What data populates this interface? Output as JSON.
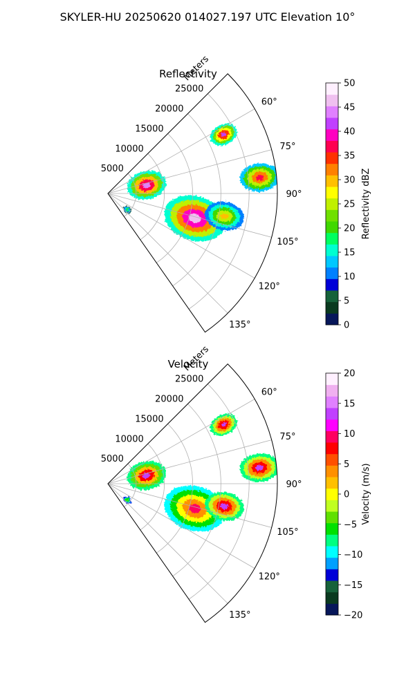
{
  "figure": {
    "suptitle": "SKYLER-HU  20250620  014027.197 UTC Elevation 10°"
  },
  "chart_data": [
    {
      "type": "heatmap",
      "title": "Reflectivity",
      "radial_label": "Meters",
      "radial_ticks": [
        5000,
        10000,
        15000,
        20000,
        25000
      ],
      "radial_tick_labels": [
        "5000",
        "10000",
        "15000",
        "20000",
        "25000"
      ],
      "rmax": 30000,
      "theta_range_deg": [
        45,
        145
      ],
      "theta_ticks_labeled": [
        60,
        75,
        90,
        105,
        120,
        135
      ],
      "theta_tick_labels": [
        "60°",
        "75°",
        "90°",
        "105°",
        "120°",
        "135°"
      ],
      "grid": true,
      "colorbar": {
        "label": "Reflectivity dBZ",
        "range": [
          0,
          50
        ],
        "ticks": [
          0,
          5,
          10,
          15,
          20,
          25,
          30,
          35,
          40,
          45,
          50
        ],
        "tick_labels": [
          "0",
          "5",
          "10",
          "15",
          "20",
          "25",
          "30",
          "35",
          "40",
          "45",
          "50"
        ]
      },
      "echo_cells": [
        {
          "azimuth_deg": 63,
          "range_m": 23000,
          "extent_m": 2500,
          "peak": 42
        },
        {
          "azimuth_deg": 78,
          "range_m": 7000,
          "extent_m": 3500,
          "peak": 45
        },
        {
          "azimuth_deg": 84,
          "range_m": 27000,
          "extent_m": 3500,
          "peak": 38
        },
        {
          "azimuth_deg": 106,
          "range_m": 16000,
          "extent_m": 5500,
          "peak": 47
        },
        {
          "azimuth_deg": 101,
          "range_m": 21000,
          "extent_m": 3500,
          "peak": 30
        },
        {
          "azimuth_deg": 130,
          "range_m": 4500,
          "extent_m": 800,
          "peak": 20
        }
      ]
    },
    {
      "type": "heatmap",
      "title": "Velocity",
      "radial_label": "Meters",
      "radial_ticks": [
        5000,
        10000,
        15000,
        20000,
        25000
      ],
      "radial_tick_labels": [
        "5000",
        "10000",
        "15000",
        "20000",
        "25000"
      ],
      "rmax": 30000,
      "theta_range_deg": [
        45,
        145
      ],
      "theta_ticks_labeled": [
        60,
        75,
        90,
        105,
        120,
        135
      ],
      "theta_tick_labels": [
        "60°",
        "75°",
        "90°",
        "105°",
        "120°",
        "135°"
      ],
      "grid": true,
      "colorbar": {
        "label": "Velocity (m/s)",
        "range": [
          -20,
          20
        ],
        "ticks": [
          -20,
          -15,
          -10,
          -5,
          0,
          5,
          10,
          15,
          20
        ],
        "tick_labels": [
          "−20",
          "−15",
          "−10",
          "−5",
          "0",
          "5",
          "10",
          "15",
          "20"
        ]
      },
      "echo_cells": [
        {
          "azimuth_deg": 63,
          "range_m": 23000,
          "extent_m": 2500,
          "peak": 14
        },
        {
          "azimuth_deg": 78,
          "range_m": 7000,
          "extent_m": 3500,
          "peak": 13
        },
        {
          "azimuth_deg": 84,
          "range_m": 27000,
          "extent_m": 3500,
          "peak": 14
        },
        {
          "azimuth_deg": 106,
          "range_m": 16000,
          "extent_m": 5500,
          "peak": 9
        },
        {
          "azimuth_deg": 101,
          "range_m": 21000,
          "extent_m": 3500,
          "peak": 14
        },
        {
          "azimuth_deg": 130,
          "range_m": 4500,
          "extent_m": 800,
          "peak": -3
        }
      ]
    }
  ],
  "colors": {
    "axis": "#000000",
    "grid": "#b0b0b0",
    "reflectivity_cmap": [
      "#07175a",
      "#0a3a1f",
      "#16623a",
      "#0000d8",
      "#0080ff",
      "#00c8ff",
      "#00ffd0",
      "#00ff60",
      "#40d800",
      "#70e000",
      "#c0f000",
      "#ffff00",
      "#ffc000",
      "#ff8000",
      "#ff3000",
      "#ff0050",
      "#ff00c0",
      "#c040ff",
      "#e080ff",
      "#f0c0f0",
      "#fff0ff"
    ],
    "velocity_cmap": [
      "#07175a",
      "#0a3a1f",
      "#16623a",
      "#0000d8",
      "#00a0ff",
      "#00ffff",
      "#00ff80",
      "#00e000",
      "#60e000",
      "#c0ff20",
      "#ffff00",
      "#ffc000",
      "#ff9000",
      "#ff5000",
      "#ff0000",
      "#ff0060",
      "#ff00ff",
      "#c040ff",
      "#e080ff",
      "#f0b0f0",
      "#fff0ff"
    ]
  }
}
